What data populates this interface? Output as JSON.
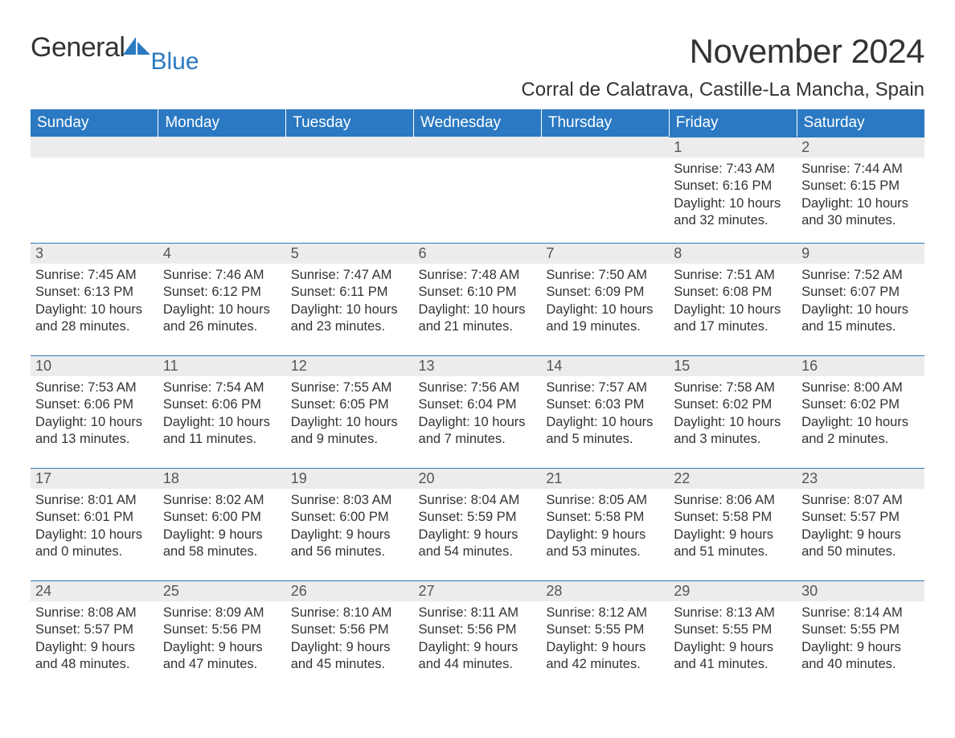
{
  "logo": {
    "text1": "General",
    "text2": "Blue",
    "icon_color": "#2b79c2"
  },
  "title": "November 2024",
  "location": "Corral de Calatrava, Castille-La Mancha, Spain",
  "colors": {
    "header_bg": "#2b79c2",
    "header_text": "#ffffff",
    "daynum_bg": "#ececec",
    "daynum_border": "#2b79c2",
    "body_text": "#333333"
  },
  "fonts": {
    "title_size": 42,
    "location_size": 24,
    "header_size": 19,
    "daynum_size": 18,
    "body_size": 16.5
  },
  "weekdays": [
    "Sunday",
    "Monday",
    "Tuesday",
    "Wednesday",
    "Thursday",
    "Friday",
    "Saturday"
  ],
  "weeks": [
    [
      null,
      null,
      null,
      null,
      null,
      {
        "n": "1",
        "sr": "Sunrise: 7:43 AM",
        "ss": "Sunset: 6:16 PM",
        "d1": "Daylight: 10 hours",
        "d2": "and 32 minutes."
      },
      {
        "n": "2",
        "sr": "Sunrise: 7:44 AM",
        "ss": "Sunset: 6:15 PM",
        "d1": "Daylight: 10 hours",
        "d2": "and 30 minutes."
      }
    ],
    [
      {
        "n": "3",
        "sr": "Sunrise: 7:45 AM",
        "ss": "Sunset: 6:13 PM",
        "d1": "Daylight: 10 hours",
        "d2": "and 28 minutes."
      },
      {
        "n": "4",
        "sr": "Sunrise: 7:46 AM",
        "ss": "Sunset: 6:12 PM",
        "d1": "Daylight: 10 hours",
        "d2": "and 26 minutes."
      },
      {
        "n": "5",
        "sr": "Sunrise: 7:47 AM",
        "ss": "Sunset: 6:11 PM",
        "d1": "Daylight: 10 hours",
        "d2": "and 23 minutes."
      },
      {
        "n": "6",
        "sr": "Sunrise: 7:48 AM",
        "ss": "Sunset: 6:10 PM",
        "d1": "Daylight: 10 hours",
        "d2": "and 21 minutes."
      },
      {
        "n": "7",
        "sr": "Sunrise: 7:50 AM",
        "ss": "Sunset: 6:09 PM",
        "d1": "Daylight: 10 hours",
        "d2": "and 19 minutes."
      },
      {
        "n": "8",
        "sr": "Sunrise: 7:51 AM",
        "ss": "Sunset: 6:08 PM",
        "d1": "Daylight: 10 hours",
        "d2": "and 17 minutes."
      },
      {
        "n": "9",
        "sr": "Sunrise: 7:52 AM",
        "ss": "Sunset: 6:07 PM",
        "d1": "Daylight: 10 hours",
        "d2": "and 15 minutes."
      }
    ],
    [
      {
        "n": "10",
        "sr": "Sunrise: 7:53 AM",
        "ss": "Sunset: 6:06 PM",
        "d1": "Daylight: 10 hours",
        "d2": "and 13 minutes."
      },
      {
        "n": "11",
        "sr": "Sunrise: 7:54 AM",
        "ss": "Sunset: 6:06 PM",
        "d1": "Daylight: 10 hours",
        "d2": "and 11 minutes."
      },
      {
        "n": "12",
        "sr": "Sunrise: 7:55 AM",
        "ss": "Sunset: 6:05 PM",
        "d1": "Daylight: 10 hours",
        "d2": "and 9 minutes."
      },
      {
        "n": "13",
        "sr": "Sunrise: 7:56 AM",
        "ss": "Sunset: 6:04 PM",
        "d1": "Daylight: 10 hours",
        "d2": "and 7 minutes."
      },
      {
        "n": "14",
        "sr": "Sunrise: 7:57 AM",
        "ss": "Sunset: 6:03 PM",
        "d1": "Daylight: 10 hours",
        "d2": "and 5 minutes."
      },
      {
        "n": "15",
        "sr": "Sunrise: 7:58 AM",
        "ss": "Sunset: 6:02 PM",
        "d1": "Daylight: 10 hours",
        "d2": "and 3 minutes."
      },
      {
        "n": "16",
        "sr": "Sunrise: 8:00 AM",
        "ss": "Sunset: 6:02 PM",
        "d1": "Daylight: 10 hours",
        "d2": "and 2 minutes."
      }
    ],
    [
      {
        "n": "17",
        "sr": "Sunrise: 8:01 AM",
        "ss": "Sunset: 6:01 PM",
        "d1": "Daylight: 10 hours",
        "d2": "and 0 minutes."
      },
      {
        "n": "18",
        "sr": "Sunrise: 8:02 AM",
        "ss": "Sunset: 6:00 PM",
        "d1": "Daylight: 9 hours",
        "d2": "and 58 minutes."
      },
      {
        "n": "19",
        "sr": "Sunrise: 8:03 AM",
        "ss": "Sunset: 6:00 PM",
        "d1": "Daylight: 9 hours",
        "d2": "and 56 minutes."
      },
      {
        "n": "20",
        "sr": "Sunrise: 8:04 AM",
        "ss": "Sunset: 5:59 PM",
        "d1": "Daylight: 9 hours",
        "d2": "and 54 minutes."
      },
      {
        "n": "21",
        "sr": "Sunrise: 8:05 AM",
        "ss": "Sunset: 5:58 PM",
        "d1": "Daylight: 9 hours",
        "d2": "and 53 minutes."
      },
      {
        "n": "22",
        "sr": "Sunrise: 8:06 AM",
        "ss": "Sunset: 5:58 PM",
        "d1": "Daylight: 9 hours",
        "d2": "and 51 minutes."
      },
      {
        "n": "23",
        "sr": "Sunrise: 8:07 AM",
        "ss": "Sunset: 5:57 PM",
        "d1": "Daylight: 9 hours",
        "d2": "and 50 minutes."
      }
    ],
    [
      {
        "n": "24",
        "sr": "Sunrise: 8:08 AM",
        "ss": "Sunset: 5:57 PM",
        "d1": "Daylight: 9 hours",
        "d2": "and 48 minutes."
      },
      {
        "n": "25",
        "sr": "Sunrise: 8:09 AM",
        "ss": "Sunset: 5:56 PM",
        "d1": "Daylight: 9 hours",
        "d2": "and 47 minutes."
      },
      {
        "n": "26",
        "sr": "Sunrise: 8:10 AM",
        "ss": "Sunset: 5:56 PM",
        "d1": "Daylight: 9 hours",
        "d2": "and 45 minutes."
      },
      {
        "n": "27",
        "sr": "Sunrise: 8:11 AM",
        "ss": "Sunset: 5:56 PM",
        "d1": "Daylight: 9 hours",
        "d2": "and 44 minutes."
      },
      {
        "n": "28",
        "sr": "Sunrise: 8:12 AM",
        "ss": "Sunset: 5:55 PM",
        "d1": "Daylight: 9 hours",
        "d2": "and 42 minutes."
      },
      {
        "n": "29",
        "sr": "Sunrise: 8:13 AM",
        "ss": "Sunset: 5:55 PM",
        "d1": "Daylight: 9 hours",
        "d2": "and 41 minutes."
      },
      {
        "n": "30",
        "sr": "Sunrise: 8:14 AM",
        "ss": "Sunset: 5:55 PM",
        "d1": "Daylight: 9 hours",
        "d2": "and 40 minutes."
      }
    ]
  ]
}
